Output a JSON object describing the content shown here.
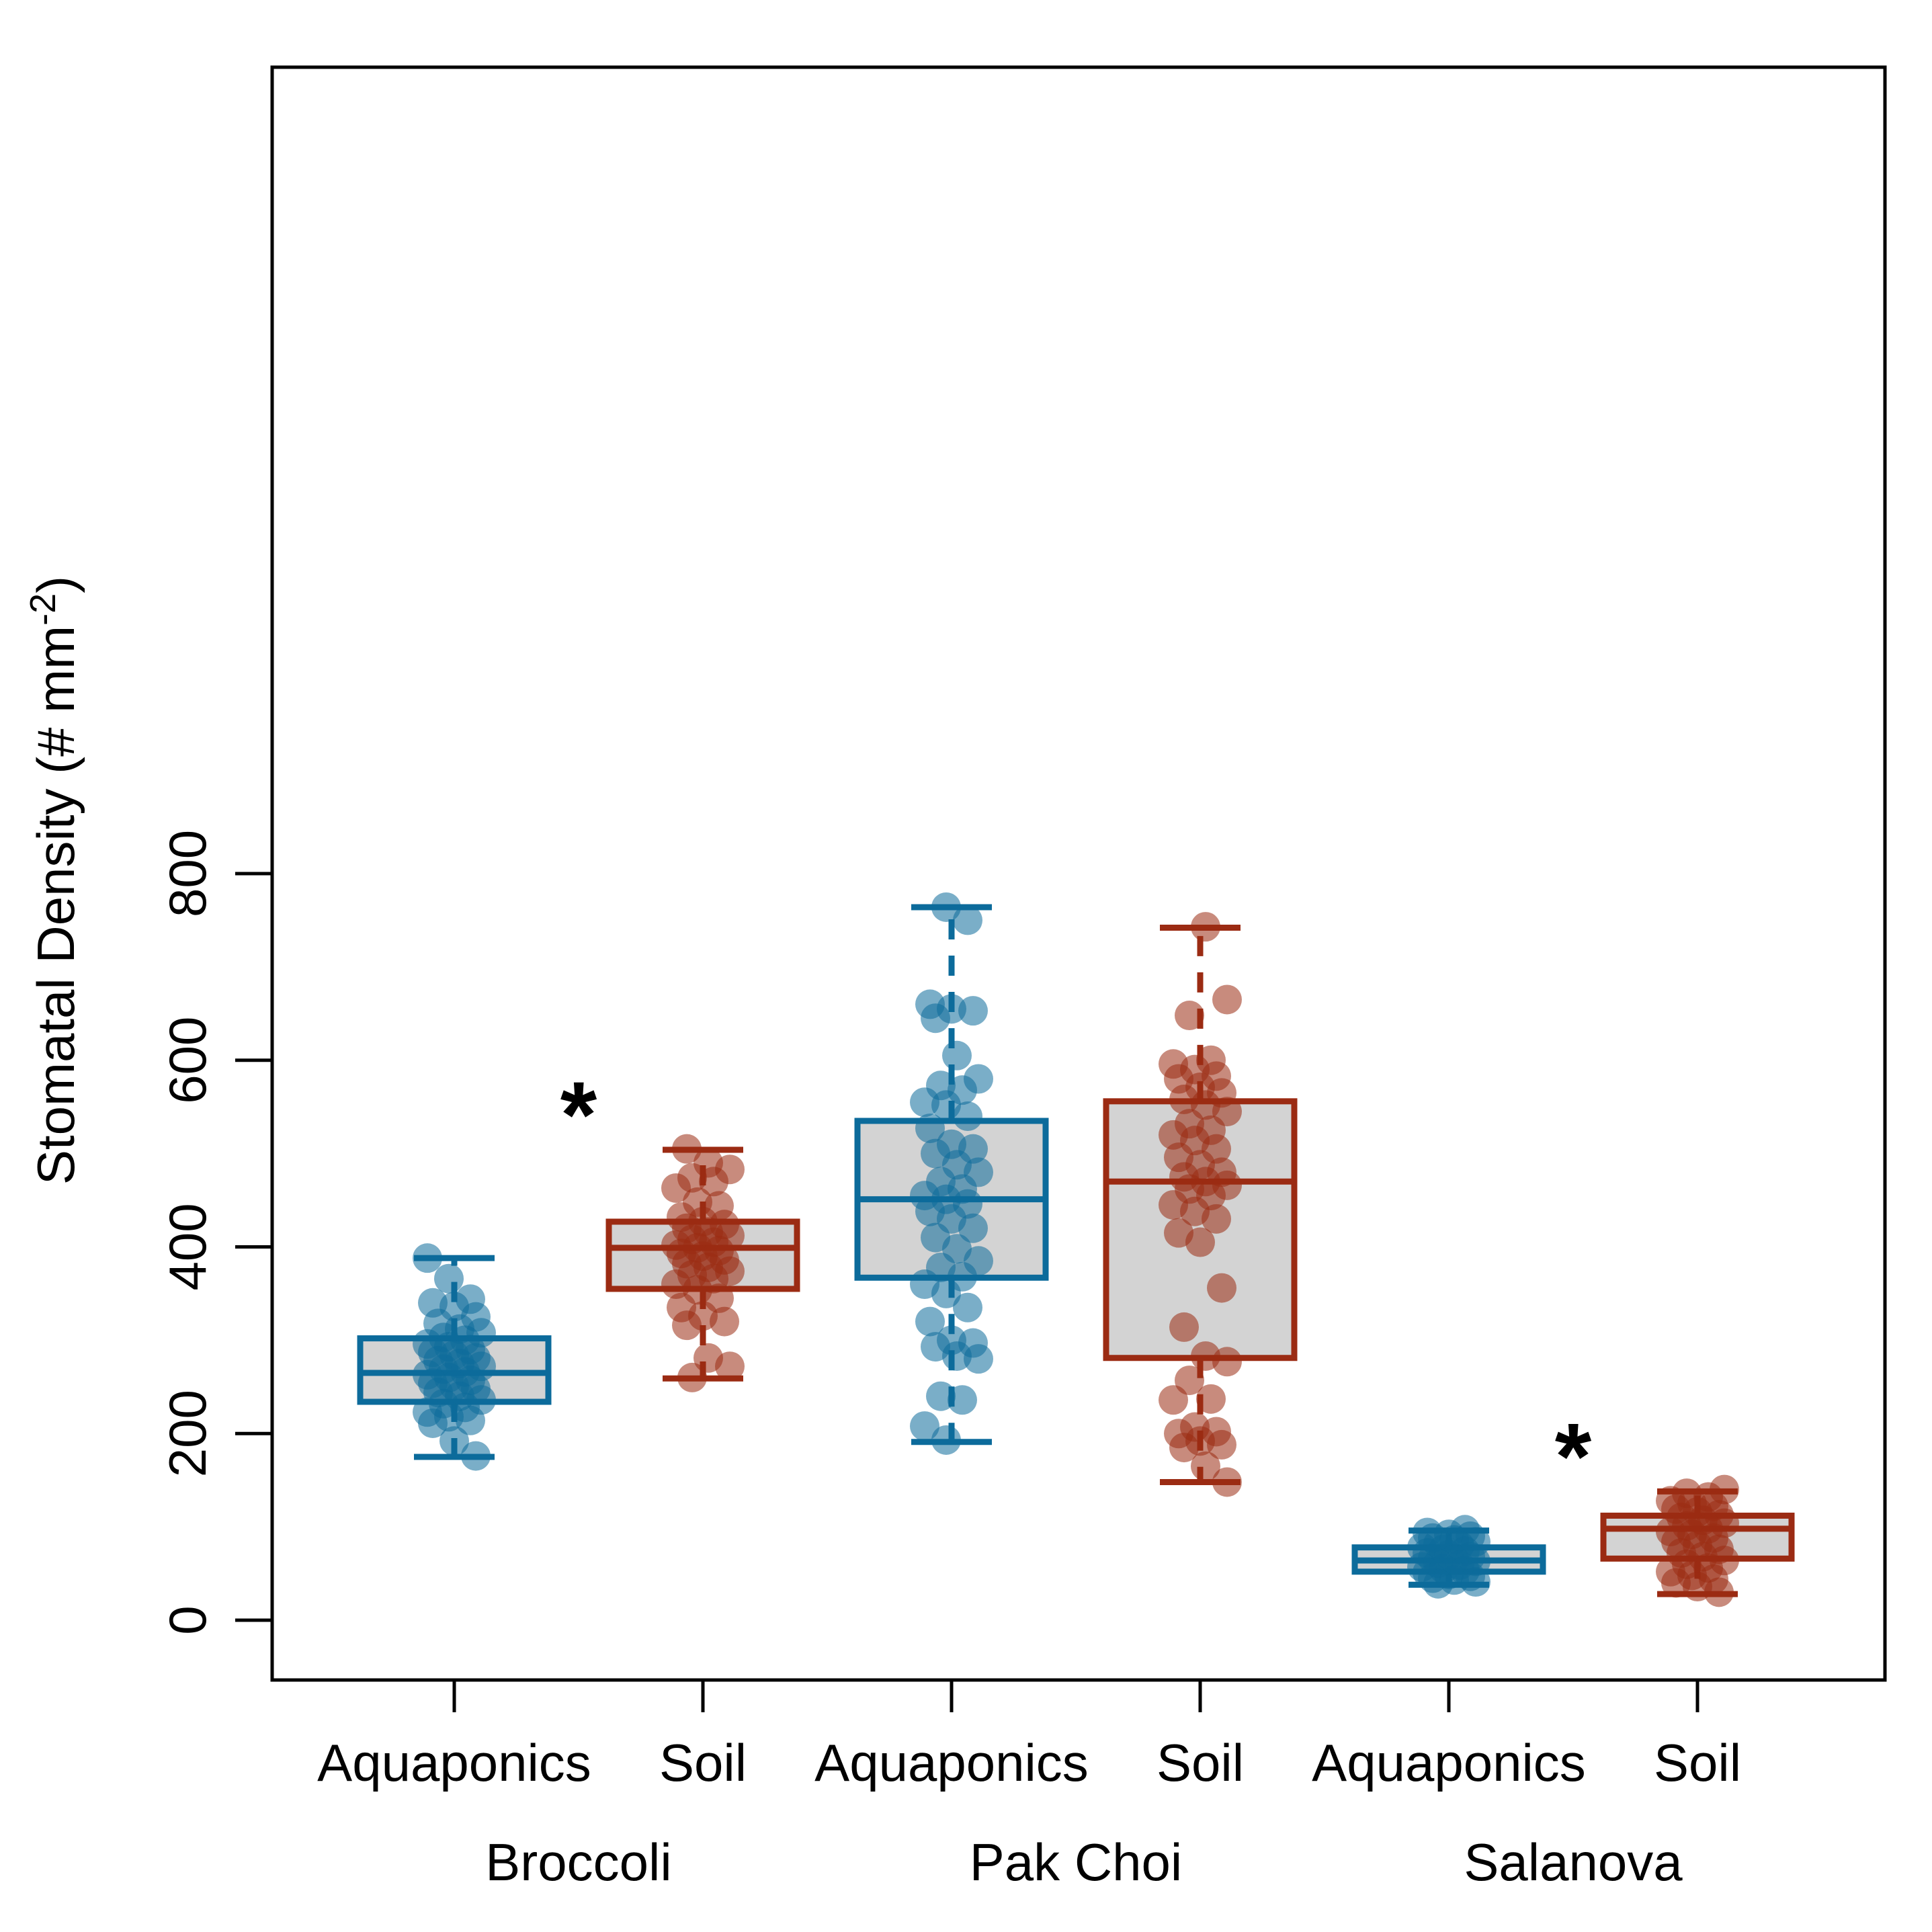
{
  "chart_data": {
    "type": "box",
    "ylabel_main": "Stomatal Density  (# mm",
    "ylabel_sup": "-2",
    "ylabel_close": ")",
    "ylim": [
      -30,
      833
    ],
    "yticks": [
      0,
      200,
      400,
      600,
      800
    ],
    "grid": false,
    "legend": "none",
    "colors": {
      "Aquaponics": "#0c6b9b",
      "Soil": "#9b2b13",
      "box_fill": "#d3d3d3"
    },
    "groups": [
      {
        "name": "Broccoli",
        "significance": "*",
        "boxes": [
          {
            "treatment": "Aquaponics",
            "whisker_low": 175,
            "q1": 234,
            "median": 265,
            "q3": 302,
            "whisker_high": 388,
            "points": [
              388,
              366,
              344,
              340,
              336,
              325,
              318,
              312,
              308,
              303,
              300,
              296,
              293,
              290,
              287,
              284,
              281,
              278,
              275,
              272,
              269,
              266,
              263,
              260,
              257,
              254,
              251,
              248,
              244,
              240,
              236,
              232,
              228,
              223,
              218,
              214,
              211,
              192,
              176
            ]
          },
          {
            "treatment": "Soil",
            "whisker_low": 259,
            "q1": 355,
            "median": 399,
            "q3": 427,
            "whisker_high": 504,
            "points": [
              505,
              490,
              483,
              474,
              470,
              463,
              448,
              444,
              432,
              427,
              424,
              420,
              416,
              412,
              408,
              405,
              402,
              399,
              396,
              393,
              390,
              386,
              382,
              378,
              374,
              370,
              366,
              360,
              354,
              345,
              335,
              326,
              320,
              316,
              281,
              272,
              260
            ]
          }
        ]
      },
      {
        "name": "Pak Choi",
        "significance": "",
        "boxes": [
          {
            "treatment": "Aquaponics",
            "whisker_low": 191,
            "q1": 367,
            "median": 451,
            "q3": 535,
            "whisker_high": 764,
            "points": [
              764,
              750,
              660,
              655,
              653,
              645,
              605,
              580,
              573,
              568,
              555,
              552,
              540,
              527,
              510,
              505,
              500,
              488,
              480,
              470,
              462,
              455,
              451,
              446,
              438,
              430,
              420,
              410,
              398,
              385,
              378,
              368,
              360,
              350,
              335,
              320,
              300,
              297,
              293,
              283,
              280,
              240,
              236,
              208,
              193
            ]
          },
          {
            "treatment": "Soil",
            "whisker_low": 148,
            "q1": 281,
            "median": 470,
            "q3": 556,
            "whisker_high": 742,
            "points": [
              743,
              665,
              648,
              600,
              596,
              590,
              583,
              580,
              571,
              565,
              558,
              552,
              545,
              532,
              525,
              520,
              514,
              505,
              496,
              488,
              480,
              475,
              470,
              466,
              462,
              455,
              445,
              438,
              430,
              415,
              405,
              356,
              314,
              283,
              277,
              257,
              237,
              236,
              207,
              202,
              200,
              192,
              188,
              185,
              165,
              148
            ]
          }
        ]
      },
      {
        "name": "Salanova",
        "significance": "*",
        "boxes": [
          {
            "treatment": "Aquaponics",
            "whisker_low": 38,
            "q1": 52,
            "median": 64,
            "q3": 78,
            "whisker_high": 96,
            "points": [
              97,
              94,
              92,
              90,
              88,
              86,
              84,
              82,
              80,
              78,
              76,
              74,
              72,
              70,
              68,
              66,
              65,
              63,
              61,
              59,
              57,
              55,
              53,
              51,
              49,
              47,
              45,
              43,
              41,
              39
            ]
          },
          {
            "treatment": "Soil",
            "whisker_low": 28,
            "q1": 66,
            "median": 98,
            "q3": 112,
            "whisker_high": 138,
            "points": [
              140,
              136,
              132,
              128,
              125,
              122,
              119,
              116,
              113,
              110,
              107,
              104,
              101,
              98,
              95,
              92,
              88,
              84,
              80,
              76,
              72,
              68,
              64,
              60,
              56,
              52,
              48,
              44,
              40,
              36,
              30
            ]
          }
        ]
      }
    ]
  }
}
